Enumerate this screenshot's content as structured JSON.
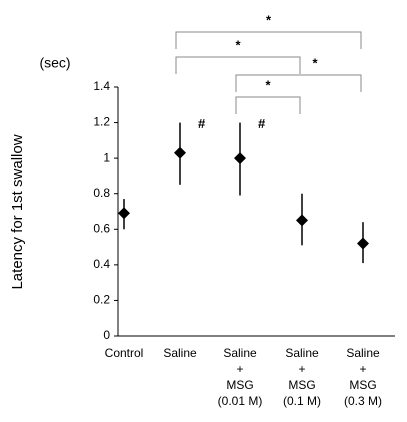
{
  "chart_data": {
    "type": "errorbar",
    "y_label": "Latency for 1st swallow",
    "y_unit": "(sec)",
    "categories": [
      [
        "Control"
      ],
      [
        "Saline"
      ],
      [
        "Saline",
        "+",
        "MSG",
        "(0.01 M)"
      ],
      [
        "Saline",
        "+",
        "MSG",
        "(0.1 M)"
      ],
      [
        "Saline",
        "+",
        "MSG",
        "(0.3 M)"
      ]
    ],
    "values": [
      0.69,
      1.03,
      1.0,
      0.65,
      0.52
    ],
    "lower": [
      0.6,
      0.85,
      0.79,
      0.51,
      0.41
    ],
    "upper": [
      0.77,
      1.2,
      1.2,
      0.8,
      0.64
    ],
    "color": "#000000",
    "ylim": [
      0,
      1.4
    ],
    "yticks": [
      0,
      0.2,
      0.4,
      0.6,
      0.8,
      1,
      1.2,
      1.4
    ],
    "markers": [
      {
        "category": 1,
        "text": "#"
      },
      {
        "category": 2,
        "text": "#"
      }
    ],
    "brackets": [
      {
        "from": 1,
        "to": 4,
        "text": "*"
      },
      {
        "from": 1,
        "to": 3,
        "text": "*"
      },
      {
        "from": 2,
        "to": 4,
        "text": "*"
      },
      {
        "from": 2,
        "to": 3,
        "text": "*"
      }
    ]
  }
}
